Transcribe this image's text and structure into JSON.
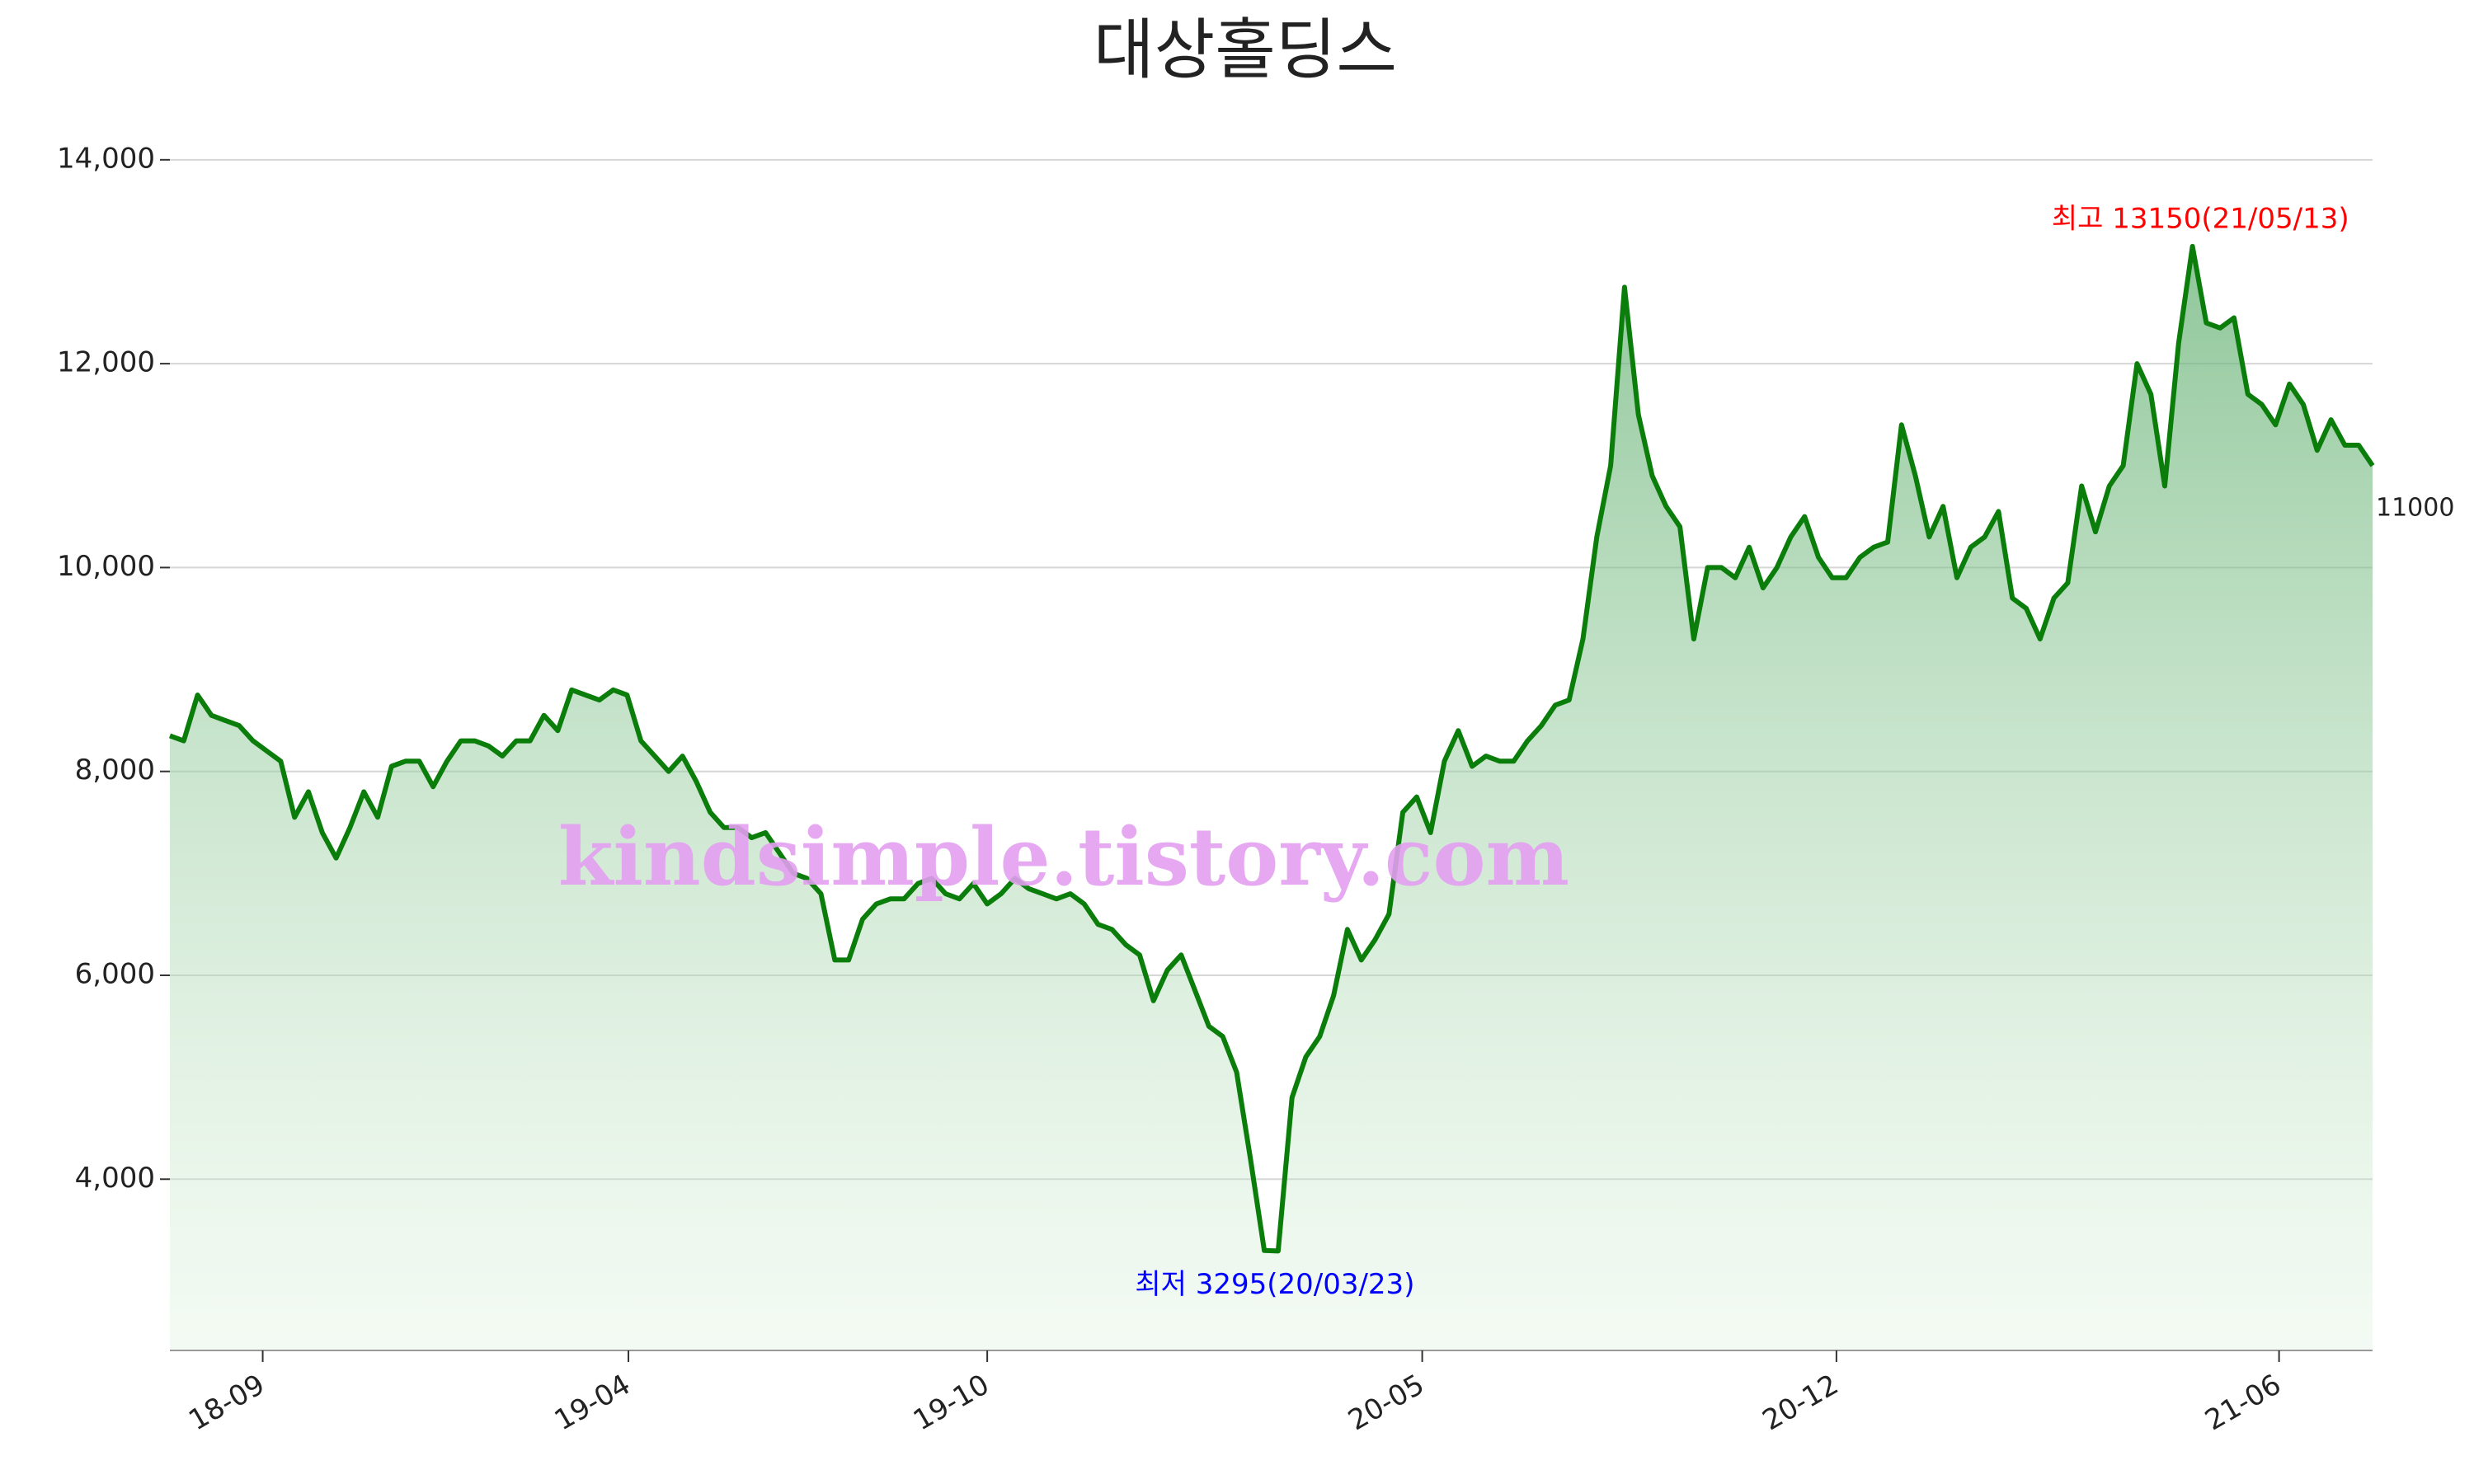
{
  "chart_data": {
    "type": "line",
    "title": "대상홀딩스",
    "values": [
      8350,
      8300,
      8750,
      8550,
      8500,
      8450,
      8300,
      8200,
      8100,
      7550,
      7800,
      7400,
      7150,
      7450,
      7800,
      7550,
      8050,
      8100,
      8100,
      7850,
      8100,
      8300,
      8300,
      8250,
      8150,
      8300,
      8300,
      8550,
      8400,
      8800,
      8750,
      8700,
      8800,
      8750,
      8300,
      8150,
      8000,
      8150,
      7900,
      7600,
      7450,
      7450,
      7350,
      7400,
      7200,
      7000,
      6950,
      6800,
      6150,
      6150,
      6550,
      6700,
      6750,
      6750,
      6900,
      6950,
      6800,
      6750,
      6900,
      6700,
      6800,
      6950,
      6850,
      6800,
      6750,
      6800,
      6700,
      6500,
      6450,
      6300,
      6200,
      5750,
      6050,
      6200,
      5850,
      5500,
      5400,
      5050,
      4200,
      3300,
      3295,
      4800,
      5200,
      5400,
      5800,
      6450,
      6150,
      6350,
      6600,
      7600,
      7750,
      7400,
      8100,
      8400,
      8050,
      8150,
      8100,
      8100,
      8300,
      8450,
      8650,
      8700,
      9300,
      10300,
      11000,
      12750,
      11500,
      10900,
      10600,
      10400,
      9300,
      10000,
      10000,
      9900,
      10200,
      9800,
      10000,
      10300,
      10500,
      10100,
      9900,
      9900,
      10100,
      10200,
      10250,
      11400,
      10900,
      10300,
      10600,
      9900,
      10200,
      10300,
      10550,
      9700,
      9600,
      9300,
      9700,
      9850,
      10800,
      10350,
      10800,
      11000,
      12000,
      11700,
      10800,
      12200,
      13150,
      12400,
      12350,
      12450,
      11700,
      11600,
      11400,
      11800,
      11600,
      11150,
      11450,
      11200,
      11200,
      11000
    ],
    "color": "#0a7d0a",
    "xlim": [
      0,
      159
    ],
    "xticks": [
      {
        "value": 6.7,
        "label": "18-09"
      },
      {
        "value": 33.1,
        "label": "19-04"
      },
      {
        "value": 59,
        "label": "19-10"
      },
      {
        "value": 90.4,
        "label": "20-05"
      },
      {
        "value": 120.3,
        "label": "20-12"
      },
      {
        "value": 152.25,
        "label": "21-06"
      }
    ],
    "ylim": [
      2320,
      14500
    ],
    "yticks": [
      {
        "value": 4000,
        "label": "4,000"
      },
      {
        "value": 6000,
        "label": "6,000"
      },
      {
        "value": 8000,
        "label": "8,000"
      },
      {
        "value": 10000,
        "label": "10,000"
      },
      {
        "value": 12000,
        "label": "12,000"
      },
      {
        "value": 14000,
        "label": "14,000"
      }
    ],
    "grid": true,
    "annotations": {
      "max": {
        "text": "최고 13150(21/05/13)",
        "color": "#ff0000"
      },
      "min": {
        "text": "최저 3295(20/03/23)",
        "color": "#0000ff"
      }
    },
    "watermark": "kindsimple.tistory.com"
  }
}
